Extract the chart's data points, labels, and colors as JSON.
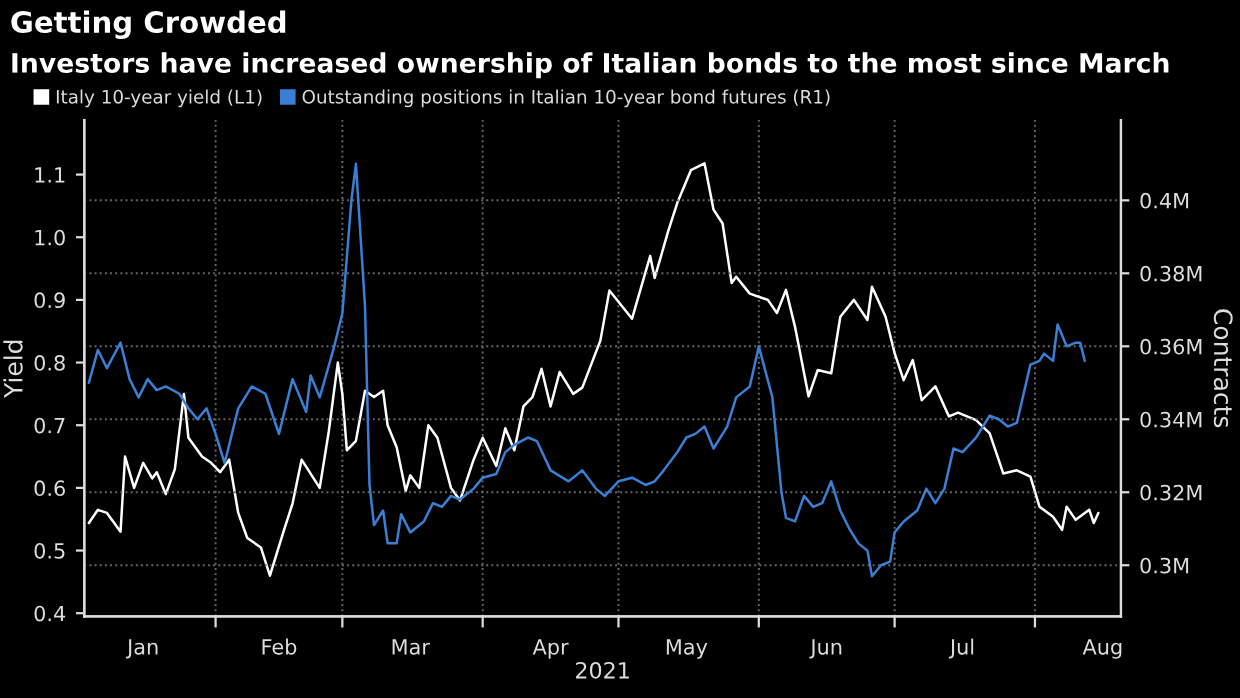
{
  "chart_data": {
    "type": "line",
    "title": "Getting Crowded",
    "subtitle": "Investors have increased ownership of Italian bonds to the most since March",
    "xlabel": "2021",
    "ylabel": "Yield",
    "y2label": "Contracts",
    "series": [
      {
        "name": "Italy 10-year yield (L1)",
        "color": "#ffffff",
        "x": [
          "2021-01-04",
          "2021-01-06",
          "2021-01-08",
          "2021-01-11",
          "2021-01-12",
          "2021-01-14",
          "2021-01-16",
          "2021-01-18",
          "2021-01-19",
          "2021-01-21",
          "2021-01-23",
          "2021-01-25",
          "2021-01-26",
          "2021-01-29",
          "2021-01-31",
          "2021-02-02",
          "2021-02-04",
          "2021-02-06",
          "2021-02-08",
          "2021-02-11",
          "2021-02-13",
          "2021-02-16",
          "2021-02-18",
          "2021-02-20",
          "2021-02-24",
          "2021-02-26",
          "2021-02-28",
          "2021-03-01",
          "2021-03-02",
          "2021-03-04",
          "2021-03-06",
          "2021-03-08",
          "2021-03-10",
          "2021-03-11",
          "2021-03-13",
          "2021-03-15",
          "2021-03-16",
          "2021-03-18",
          "2021-03-20",
          "2021-03-22",
          "2021-03-25",
          "2021-03-27",
          "2021-03-30",
          "2021-04-01",
          "2021-04-04",
          "2021-04-06",
          "2021-04-08",
          "2021-04-10",
          "2021-04-12",
          "2021-04-14",
          "2021-04-16",
          "2021-04-18",
          "2021-04-21",
          "2021-04-23",
          "2021-04-27",
          "2021-04-29",
          "2021-05-04",
          "2021-05-07",
          "2021-05-08",
          "2021-05-09",
          "2021-05-12",
          "2021-05-14",
          "2021-05-17",
          "2021-05-20",
          "2021-05-22",
          "2021-05-24",
          "2021-05-26",
          "2021-05-27",
          "2021-05-30",
          "2021-06-03",
          "2021-06-05",
          "2021-06-07",
          "2021-06-09",
          "2021-06-12",
          "2021-06-14",
          "2021-06-17",
          "2021-06-19",
          "2021-06-22",
          "2021-06-25",
          "2021-06-26",
          "2021-06-29",
          "2021-07-01",
          "2021-07-03",
          "2021-07-05",
          "2021-07-07",
          "2021-07-10",
          "2021-07-13",
          "2021-07-15",
          "2021-07-19",
          "2021-07-22",
          "2021-07-25",
          "2021-07-28",
          "2021-07-31",
          "2021-08-02",
          "2021-08-05",
          "2021-08-07",
          "2021-08-08",
          "2021-08-10",
          "2021-08-13",
          "2021-08-14",
          "2021-08-15"
        ],
        "values": [
          0.544,
          0.565,
          0.56,
          0.53,
          0.65,
          0.6,
          0.64,
          0.615,
          0.625,
          0.59,
          0.63,
          0.75,
          0.68,
          0.65,
          0.64,
          0.625,
          0.645,
          0.56,
          0.52,
          0.505,
          0.46,
          0.53,
          0.575,
          0.645,
          0.6,
          0.69,
          0.8,
          0.75,
          0.66,
          0.675,
          0.755,
          0.745,
          0.755,
          0.7,
          0.665,
          0.595,
          0.62,
          0.6,
          0.7,
          0.68,
          0.6,
          0.58,
          0.645,
          0.68,
          0.635,
          0.695,
          0.66,
          0.73,
          0.745,
          0.79,
          0.73,
          0.785,
          0.75,
          0.76,
          0.835,
          0.915,
          0.87,
          0.945,
          0.97,
          0.935,
          1.01,
          1.055,
          1.107,
          1.118,
          1.044,
          1.022,
          0.927,
          0.937,
          0.91,
          0.9,
          0.879,
          0.916,
          0.857,
          0.746,
          0.788,
          0.783,
          0.873,
          0.9,
          0.868,
          0.921,
          0.873,
          0.815,
          0.772,
          0.804,
          0.74,
          0.762,
          0.714,
          0.72,
          0.708,
          0.687,
          0.623,
          0.628,
          0.618,
          0.57,
          0.554,
          0.533,
          0.57,
          0.549,
          0.565,
          0.544,
          0.56
        ]
      },
      {
        "name": "Outstanding positions in Italian 10-year bond futures (R1)",
        "color": "#3b7fd4",
        "axis": "y2",
        "x": [
          "2021-01-04",
          "2021-01-06",
          "2021-01-08",
          "2021-01-11",
          "2021-01-13",
          "2021-01-15",
          "2021-01-17",
          "2021-01-19",
          "2021-01-21",
          "2021-01-24",
          "2021-01-26",
          "2021-01-28",
          "2021-01-30",
          "2021-02-01",
          "2021-02-03",
          "2021-02-06",
          "2021-02-09",
          "2021-02-12",
          "2021-02-15",
          "2021-02-18",
          "2021-02-21",
          "2021-02-22",
          "2021-02-24",
          "2021-02-27",
          "2021-03-01",
          "2021-03-03",
          "2021-03-04",
          "2021-03-06",
          "2021-03-07",
          "2021-03-08",
          "2021-03-10",
          "2021-03-11",
          "2021-03-13",
          "2021-03-14",
          "2021-03-16",
          "2021-03-19",
          "2021-03-21",
          "2021-03-23",
          "2021-03-25",
          "2021-03-27",
          "2021-03-30",
          "2021-04-01",
          "2021-04-04",
          "2021-04-06",
          "2021-04-08",
          "2021-04-11",
          "2021-04-13",
          "2021-04-16",
          "2021-04-20",
          "2021-04-23",
          "2021-04-26",
          "2021-04-28",
          "2021-05-01",
          "2021-05-04",
          "2021-05-07",
          "2021-05-09",
          "2021-05-11",
          "2021-05-14",
          "2021-05-16",
          "2021-05-18",
          "2021-05-20",
          "2021-05-22",
          "2021-05-25",
          "2021-05-27",
          "2021-05-30",
          "2021-06-01",
          "2021-06-04",
          "2021-06-06",
          "2021-06-07",
          "2021-06-09",
          "2021-06-11",
          "2021-06-13",
          "2021-06-15",
          "2021-06-17",
          "2021-06-19",
          "2021-06-21",
          "2021-06-23",
          "2021-06-25",
          "2021-06-26",
          "2021-06-28",
          "2021-06-30",
          "2021-07-01",
          "2021-07-03",
          "2021-07-06",
          "2021-07-08",
          "2021-07-10",
          "2021-07-12",
          "2021-07-14",
          "2021-07-16",
          "2021-07-19",
          "2021-07-22",
          "2021-07-24",
          "2021-07-26",
          "2021-07-28",
          "2021-07-31",
          "2021-08-02",
          "2021-08-03",
          "2021-08-05",
          "2021-08-06",
          "2021-08-08",
          "2021-08-10",
          "2021-08-11",
          "2021-08-12"
        ],
        "values": [
          0.35,
          0.359,
          0.354,
          0.361,
          0.351,
          0.346,
          0.351,
          0.348,
          0.349,
          0.347,
          0.343,
          0.34,
          0.343,
          0.336,
          0.328,
          0.343,
          0.349,
          0.347,
          0.336,
          0.351,
          0.342,
          0.352,
          0.346,
          0.359,
          0.369,
          0.4,
          0.41,
          0.371,
          0.322,
          0.311,
          0.315,
          0.306,
          0.306,
          0.314,
          0.309,
          0.312,
          0.317,
          0.316,
          0.319,
          0.318,
          0.321,
          0.324,
          0.325,
          0.331,
          0.333,
          0.335,
          0.334,
          0.326,
          0.323,
          0.326,
          0.321,
          0.319,
          0.323,
          0.324,
          0.322,
          0.323,
          0.326,
          0.331,
          0.335,
          0.336,
          0.338,
          0.332,
          0.338,
          0.346,
          0.349,
          0.36,
          0.346,
          0.32,
          0.313,
          0.312,
          0.319,
          0.316,
          0.317,
          0.323,
          0.315,
          0.31,
          0.306,
          0.304,
          0.297,
          0.3,
          0.301,
          0.309,
          0.312,
          0.315,
          0.321,
          0.317,
          0.321,
          0.332,
          0.331,
          0.335,
          0.341,
          0.34,
          0.338,
          0.339,
          0.355,
          0.356,
          0.358,
          0.356,
          0.366,
          0.36,
          0.361,
          0.361,
          0.356
        ]
      }
    ],
    "xlim": [
      "2021-01-03",
      "2021-08-20"
    ],
    "xticks": [
      {
        "value": "2021-01-16",
        "label": "Jan"
      },
      {
        "value": "2021-02-01",
        "label": null
      },
      {
        "value": "2021-02-15",
        "label": "Feb"
      },
      {
        "value": "2021-03-01",
        "label": null
      },
      {
        "value": "2021-03-16",
        "label": "Mar"
      },
      {
        "value": "2021-04-01",
        "label": null
      },
      {
        "value": "2021-04-16",
        "label": "Apr"
      },
      {
        "value": "2021-05-01",
        "label": null
      },
      {
        "value": "2021-05-16",
        "label": "May"
      },
      {
        "value": "2021-06-01",
        "label": null
      },
      {
        "value": "2021-06-16",
        "label": "Jun"
      },
      {
        "value": "2021-07-01",
        "label": null
      },
      {
        "value": "2021-07-16",
        "label": "Jul"
      },
      {
        "value": "2021-08-01",
        "label": null
      },
      {
        "value": "2021-08-16",
        "label": "Aug"
      }
    ],
    "ylim": [
      0.395,
      1.187
    ],
    "yticks": [
      0.4,
      0.5,
      0.6,
      0.7,
      0.8,
      0.9,
      {
        "value": 1.0,
        "label": "1.0"
      },
      1.1
    ],
    "y2lim": [
      0.286,
      0.422
    ],
    "y2ticks": [
      {
        "value": 0.3,
        "label": "0.3M"
      },
      {
        "value": 0.32,
        "label": "0.32M"
      },
      {
        "value": 0.34,
        "label": "0.34M"
      },
      {
        "value": 0.36,
        "label": "0.36M"
      },
      {
        "value": 0.38,
        "label": "0.38M"
      },
      {
        "value": 0.4,
        "label": "0.4M"
      }
    ],
    "grid": true,
    "legend": "top left",
    "line_style": "solid"
  }
}
